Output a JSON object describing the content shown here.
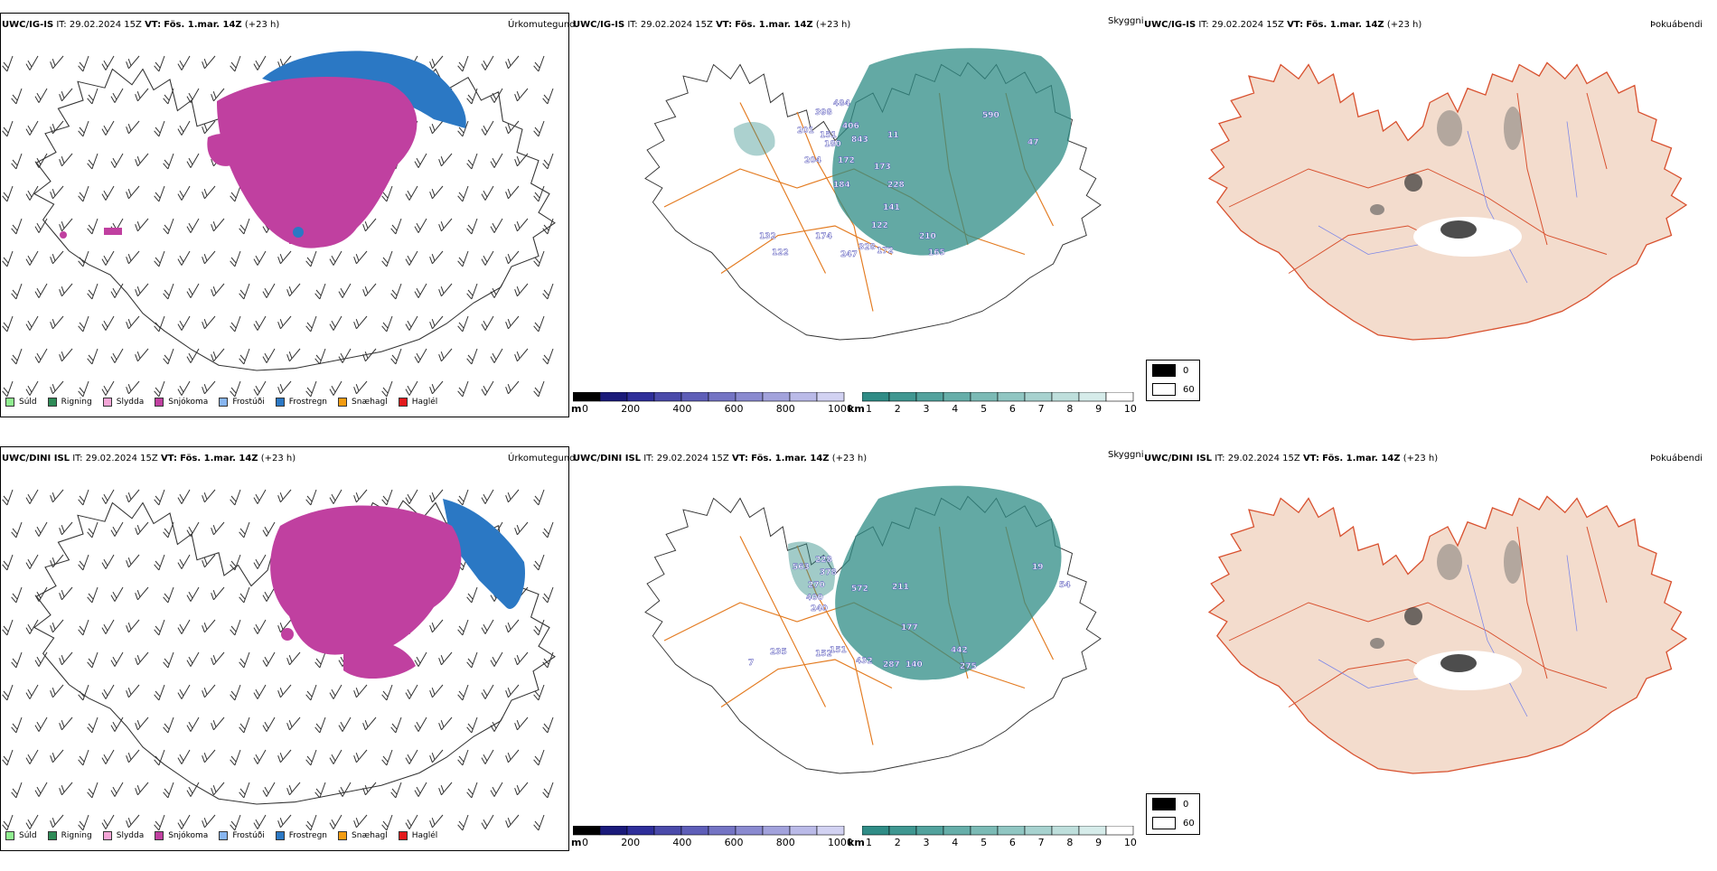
{
  "colors": {
    "map_outline": "#333333",
    "road": "#e37a1f",
    "road_red": "#d8502e",
    "river": "#7b86e8",
    "land_fill": "#f3dccd",
    "snow": "#c040a0",
    "frostregn": "#2b78c4",
    "cloud_teal": "#2f8c86"
  },
  "rows": [
    {
      "model": "UWC/IG-IS",
      "it_label": "IT:",
      "it_value": "29.02.2024 15Z",
      "vt_label": "VT:",
      "vt_value": "Fös. 1.mar. 14Z",
      "lead": "(+23 h)",
      "titles": [
        "Úrkomutegund",
        "Skyggni",
        "Þokuábendi"
      ],
      "visibility_labels": [
        "398",
        "484",
        "406",
        "201",
        "151",
        "843",
        "180",
        "172",
        "204",
        "173",
        "184",
        "228",
        "141",
        "122",
        "174",
        "328",
        "247",
        "172",
        "210",
        "165",
        "132",
        "590",
        "47",
        "122",
        "11"
      ]
    },
    {
      "model": "UWC/DINI ISL",
      "it_label": "IT:",
      "it_value": "29.02.2024 15Z",
      "vt_label": "VT:",
      "vt_value": "Fös. 1.mar. 14Z",
      "lead": "(+23 h)",
      "titles": [
        "Úrkomutegund",
        "Skyggni",
        "Þokuábendi"
      ],
      "visibility_labels": [
        "563",
        "228",
        "378",
        "270",
        "400",
        "572",
        "240",
        "211",
        "19",
        "54",
        "177",
        "235",
        "152",
        "151",
        "432",
        "287",
        "140",
        "442",
        "275",
        "7"
      ]
    }
  ],
  "precip_legend": [
    {
      "label": "Súld",
      "color": "#90ee90"
    },
    {
      "label": "Rigning",
      "color": "#2e8b57"
    },
    {
      "label": "Slydda",
      "color": "#f4a6d7"
    },
    {
      "label": "Snjókoma",
      "color": "#c040a0"
    },
    {
      "label": "Frostúði",
      "color": "#87b5f0"
    },
    {
      "label": "Frostregn",
      "color": "#2b78c4"
    },
    {
      "label": "Snæhagl",
      "color": "#f39c12"
    },
    {
      "label": "Haglél",
      "color": "#e31a1c"
    }
  ],
  "m_colorbar": {
    "unit": "m",
    "ticks": [
      "0",
      "200",
      "400",
      "600",
      "800",
      "1000"
    ],
    "colors": [
      "#000000",
      "#1a1a7a",
      "#2e2e9a",
      "#4a4aaa",
      "#5e5eb8",
      "#7474c4",
      "#8a8ad0",
      "#a2a2dc",
      "#babae8",
      "#d2d2f2"
    ]
  },
  "km_colorbar": {
    "unit": "km",
    "ticks": [
      "1",
      "2",
      "3",
      "4",
      "5",
      "6",
      "7",
      "8",
      "9",
      "10"
    ],
    "colors": [
      "#2f8c86",
      "#3f9791",
      "#52a29d",
      "#66aea9",
      "#7bbab5",
      "#90c6c2",
      "#a7d2cf",
      "#bedfdc",
      "#d6ecea",
      "#ffffff"
    ]
  },
  "fog_legend": [
    {
      "label": "0",
      "color": "#000000"
    },
    {
      "label": "60",
      "color": "#ffffff"
    }
  ]
}
